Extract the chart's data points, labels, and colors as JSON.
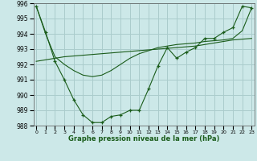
{
  "xlabel": "Graphe pression niveau de la mer (hPa)",
  "background_color": "#cce8e8",
  "grid_color": "#aacccc",
  "line_color": "#1a5c1a",
  "hours": [
    0,
    1,
    2,
    3,
    4,
    5,
    6,
    7,
    8,
    9,
    10,
    11,
    12,
    13,
    14,
    15,
    16,
    17,
    18,
    19,
    20,
    21,
    22,
    23
  ],
  "pressure_main": [
    995.8,
    994.1,
    992.2,
    991.0,
    989.7,
    988.7,
    988.2,
    988.2,
    988.6,
    988.7,
    989.0,
    989.0,
    990.4,
    991.9,
    993.1,
    992.4,
    992.8,
    993.1,
    993.7,
    993.7,
    994.1,
    994.4,
    995.8,
    995.7
  ],
  "pressure_smooth": [
    995.8,
    994.0,
    992.5,
    992.0,
    991.6,
    991.3,
    991.2,
    991.3,
    991.6,
    992.0,
    992.4,
    992.7,
    992.9,
    993.1,
    993.2,
    993.3,
    993.35,
    993.4,
    993.5,
    993.55,
    993.6,
    993.7,
    994.2,
    995.7
  ],
  "pressure_trend": [
    992.2,
    992.3,
    992.4,
    992.5,
    992.55,
    992.6,
    992.65,
    992.7,
    992.75,
    992.8,
    992.85,
    992.9,
    992.95,
    993.0,
    993.05,
    993.1,
    993.15,
    993.2,
    993.3,
    993.4,
    993.5,
    993.6,
    993.65,
    993.7
  ],
  "ylim": [
    988,
    996
  ],
  "yticks": [
    988,
    989,
    990,
    991,
    992,
    993,
    994,
    995,
    996
  ]
}
